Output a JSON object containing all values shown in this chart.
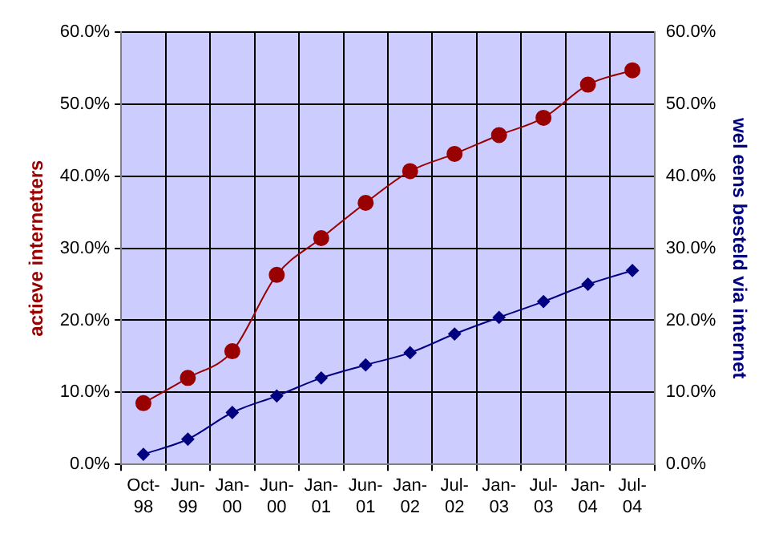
{
  "chart_data": {
    "type": "line",
    "ylabel": "actieve internetters",
    "y2label": "wel eens besteld via internet",
    "categories": [
      "Oct-98",
      "Jun-99",
      "Jan-00",
      "Jun-00",
      "Jan-01",
      "Jun-01",
      "Jan-02",
      "Jul-02",
      "Jan-03",
      "Jul-03",
      "Jan-04",
      "Jul-04"
    ],
    "series": [
      {
        "color": "#990000",
        "marker": "circle",
        "values": [
          8.5,
          12.0,
          15.7,
          26.3,
          31.4,
          36.3,
          40.7,
          43.1,
          45.7,
          48.1,
          52.7,
          54.7
        ]
      },
      {
        "color": "#000080",
        "marker": "diamond",
        "axis": "y2",
        "values": [
          1.4,
          3.5,
          7.2,
          9.5,
          12.0,
          13.8,
          15.5,
          18.1,
          20.4,
          22.6,
          25.0,
          26.9
        ]
      }
    ],
    "ylim": [
      0,
      60
    ],
    "yticks": [
      {
        "value": 0,
        "label": "0.0%"
      },
      {
        "value": 10,
        "label": "10.0%"
      },
      {
        "value": 20,
        "label": "20.0%"
      },
      {
        "value": 30,
        "label": "30.0%"
      },
      {
        "value": 40,
        "label": "40.0%"
      },
      {
        "value": 50,
        "label": "50.0%"
      },
      {
        "value": 60,
        "label": "60.0%"
      }
    ],
    "y2lim": [
      0,
      60
    ],
    "y2ticks": [
      {
        "value": 0,
        "label": "0.0%"
      },
      {
        "value": 10,
        "label": "10.0%"
      },
      {
        "value": 20,
        "label": "20.0%"
      },
      {
        "value": 30,
        "label": "30.0%"
      },
      {
        "value": 40,
        "label": "40.0%"
      },
      {
        "value": 50,
        "label": "50.0%"
      },
      {
        "value": 60,
        "label": "60.0%"
      }
    ],
    "grid": true,
    "legend": false
  }
}
